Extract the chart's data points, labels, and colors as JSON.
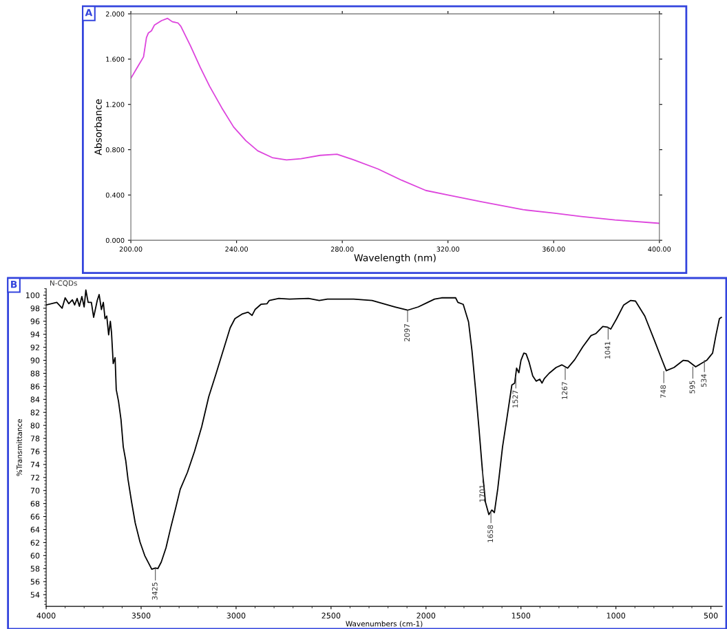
{
  "chart_data": [
    {
      "type": "line",
      "title": "A",
      "xlabel": "Wavelength (nm)",
      "ylabel": "Absorbance",
      "xlim": [
        200,
        400
      ],
      "ylim": [
        0,
        2
      ],
      "xticks": [
        {
          "value": 200,
          "label": "200.00"
        },
        {
          "value": 240,
          "label": "240.00"
        },
        {
          "value": 280,
          "label": "280.00"
        },
        {
          "value": 320,
          "label": "320.00"
        },
        {
          "value": 360,
          "label": "360.00"
        },
        {
          "value": 400,
          "label": "400.00"
        }
      ],
      "yticks": [
        {
          "value": 0,
          "label": "0.000"
        },
        {
          "value": 0.4,
          "label": "0.400"
        },
        {
          "value": 0.8,
          "label": "0.800"
        },
        {
          "value": 1.2,
          "label": "1.200"
        },
        {
          "value": 1.6,
          "label": "1.600"
        },
        {
          "value": 2,
          "label": "2.000"
        }
      ],
      "grid": false,
      "legend": false,
      "series": [
        {
          "color": "#dd44dd",
          "x": [
            200,
            202.5,
            204.8,
            205.9,
            206.6,
            207.8,
            208.9,
            211.6,
            213.9,
            215.7,
            217.8,
            218.9,
            222.5,
            226.2,
            229.8,
            234.4,
            238.9,
            243.5,
            248,
            253.5,
            258.9,
            264.4,
            271.6,
            278,
            284.4,
            293.5,
            302.5,
            311.6,
            320,
            332.6,
            348.4,
            360,
            370.5,
            383.2,
            400
          ],
          "values": [
            1.43,
            1.53,
            1.62,
            1.79,
            1.83,
            1.85,
            1.9,
            1.94,
            1.96,
            1.93,
            1.92,
            1.89,
            1.72,
            1.53,
            1.36,
            1.17,
            1.0,
            0.88,
            0.79,
            0.73,
            0.71,
            0.72,
            0.75,
            0.76,
            0.71,
            0.63,
            0.53,
            0.44,
            0.4,
            0.34,
            0.27,
            0.24,
            0.21,
            0.18,
            0.15
          ]
        }
      ]
    },
    {
      "type": "line",
      "title": "B",
      "xlabel": "Wavenumbers (cm-1)",
      "ylabel": "%Transmittance",
      "xlim": [
        4000,
        440
      ],
      "ylim": [
        52.2,
        101
      ],
      "xticks": [
        4000,
        3500,
        3000,
        2500,
        2000,
        1500,
        1000,
        500
      ],
      "yticks": [
        54,
        56,
        58,
        60,
        62,
        64,
        66,
        68,
        70,
        72,
        74,
        76,
        78,
        80,
        82,
        84,
        86,
        88,
        90,
        92,
        94,
        96,
        98,
        100
      ],
      "grid": false,
      "legend": false,
      "annotations": [
        {
          "text": "3425",
          "x": 3425,
          "y": 58
        },
        {
          "text": "2097",
          "x": 2097,
          "y": 97.7
        },
        {
          "text": "1701",
          "x": 1701,
          "y": 73
        },
        {
          "text": "1658",
          "x": 1658,
          "y": 66.8
        },
        {
          "text": "1527",
          "x": 1527,
          "y": 87.5
        },
        {
          "text": "1267",
          "x": 1267,
          "y": 88.8
        },
        {
          "text": "1041",
          "x": 1041,
          "y": 95
        },
        {
          "text": "748",
          "x": 748,
          "y": 88.3
        },
        {
          "text": "595",
          "x": 595,
          "y": 89
        },
        {
          "text": "534",
          "x": 534,
          "y": 90
        }
      ],
      "series": [
        {
          "name": "N-CQDs",
          "color": "#000000",
          "x": [
            4000,
            3944,
            3916,
            3900,
            3881,
            3862,
            3850,
            3837,
            3825,
            3812,
            3800,
            3791,
            3779,
            3762,
            3750,
            3731,
            3721,
            3709,
            3699,
            3690,
            3681,
            3671,
            3662,
            3656,
            3647,
            3637,
            3631,
            3619,
            3606,
            3594,
            3581,
            3569,
            3550,
            3531,
            3506,
            3481,
            3444,
            3425,
            3412,
            3394,
            3369,
            3344,
            3319,
            3294,
            3256,
            3219,
            3181,
            3144,
            3106,
            3069,
            3031,
            3006,
            2969,
            2937,
            2916,
            2900,
            2869,
            2837,
            2825,
            2775,
            2719,
            2619,
            2562,
            2519,
            2381,
            2284,
            2249,
            2163,
            2097,
            2041,
            1991,
            1955,
            1918,
            1868,
            1844,
            1832,
            1804,
            1776,
            1758,
            1739,
            1721,
            1703,
            1687,
            1669,
            1653,
            1640,
            1622,
            1597,
            1573,
            1548,
            1533,
            1523,
            1511,
            1500,
            1485,
            1473,
            1457,
            1438,
            1420,
            1401,
            1389,
            1377,
            1352,
            1315,
            1284,
            1254,
            1217,
            1174,
            1131,
            1106,
            1069,
            1045,
            1027,
            996,
            959,
            922,
            897,
            848,
            799,
            762,
            735,
            694,
            645,
            620,
            580,
            522,
            491,
            473,
            455,
            445
          ],
          "values": [
            98.5,
            98.9,
            98.0,
            99.6,
            98.7,
            99.3,
            98.5,
            99.5,
            98.3,
            99.8,
            98.2,
            100.8,
            98.9,
            98.9,
            96.6,
            99.2,
            100.1,
            97.8,
            98.9,
            96.4,
            96.8,
            93.9,
            96.0,
            94.3,
            89.5,
            90.4,
            85.5,
            83.7,
            80.9,
            76.7,
            74.6,
            71.7,
            68.2,
            65.0,
            62.1,
            60.0,
            57.9,
            58.1,
            58.0,
            59.0,
            61.2,
            64.3,
            67.2,
            70.2,
            72.8,
            76.0,
            79.8,
            84.4,
            87.9,
            91.4,
            95.0,
            96.4,
            97.1,
            97.4,
            96.9,
            97.8,
            98.6,
            98.7,
            99.2,
            99.5,
            99.4,
            99.5,
            99.2,
            99.4,
            99.4,
            99.2,
            98.9,
            98.2,
            97.7,
            98.2,
            98.9,
            99.4,
            99.6,
            99.6,
            99.6,
            98.9,
            98.6,
            95.9,
            91.5,
            85.5,
            79.5,
            73.1,
            68.2,
            66.3,
            67.0,
            66.6,
            70.3,
            76.7,
            81.3,
            86.2,
            86.5,
            88.8,
            88.1,
            90.0,
            91.1,
            91.0,
            89.7,
            87.6,
            86.8,
            87.1,
            86.5,
            87.2,
            88.0,
            88.9,
            89.3,
            88.8,
            90.1,
            92.1,
            93.8,
            94.1,
            95.2,
            95.1,
            94.8,
            96.4,
            98.5,
            99.2,
            99.1,
            96.8,
            93.2,
            90.4,
            88.4,
            88.9,
            90.0,
            89.9,
            89.0,
            90.0,
            91.1,
            93.9,
            96.4,
            96.6
          ]
        }
      ]
    }
  ]
}
